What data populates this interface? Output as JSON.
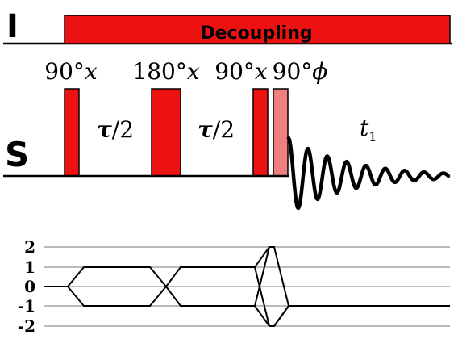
{
  "channels": {
    "i_label": "I",
    "s_label": "S"
  },
  "decoupling": {
    "label": "Decoupling"
  },
  "pulses": [
    {
      "label_main": "90°",
      "label_phase": "x"
    },
    {
      "label_main": "180°",
      "label_phase": "x"
    },
    {
      "label_main": "90°",
      "label_phase": "x"
    },
    {
      "label_main": "90°",
      "label_phase": "ϕ"
    }
  ],
  "delays": [
    {
      "label_main": "τ",
      "label_rest": "/2"
    },
    {
      "label_main": "τ",
      "label_rest": "/2"
    }
  ],
  "acquisition": {
    "label": "t",
    "subscript": "1"
  },
  "coherence": {
    "levels": [
      "2",
      "1",
      "0",
      "-1",
      "-2"
    ]
  },
  "colors": {
    "pulse": "#ee1111",
    "pulse_light": "#f08080",
    "grid": "#bbbbbb",
    "ink": "#000000"
  }
}
